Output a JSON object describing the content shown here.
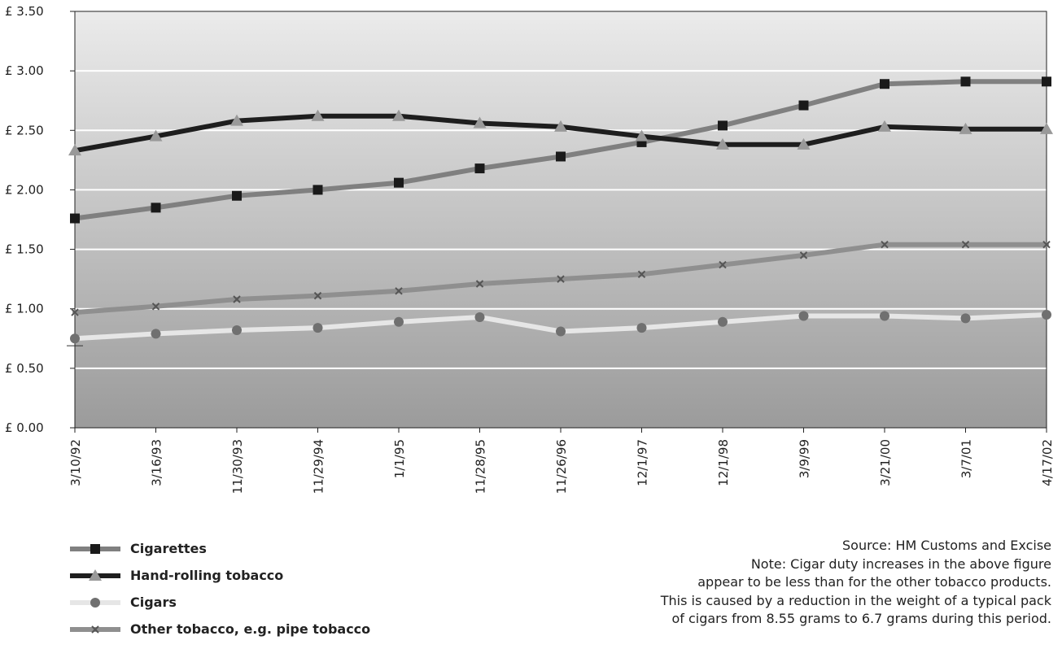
{
  "chart_data": {
    "type": "line",
    "x": [
      "3/10/92",
      "3/16/93",
      "11/30/93",
      "11/29/94",
      "1/1/95",
      "11/28/95",
      "11/26/96",
      "12/1/97",
      "12/1/98",
      "3/9/99",
      "3/21/00",
      "3/7/01",
      "4/17/02"
    ],
    "ylim": [
      0,
      3.5
    ],
    "y_ticks": [
      "£ 0.00",
      "£ 0.50",
      "£ 1.00",
      "£ 1.50",
      "£ 2.00",
      "£ 2.50",
      "£ 3.00",
      "£ 3.50"
    ],
    "grid": true,
    "legend_position": "bottom-left",
    "series": [
      {
        "name": "Cigarettes",
        "marker": "square",
        "line_color": "#808080",
        "marker_color": "#1a1a1a",
        "values": [
          1.76,
          1.85,
          1.95,
          2.0,
          2.06,
          2.18,
          2.28,
          2.4,
          2.54,
          2.71,
          2.89,
          2.91,
          2.91
        ]
      },
      {
        "name": "Hand-rolling tobacco",
        "marker": "triangle",
        "line_color": "#1e1e1e",
        "marker_color": "#999999",
        "values": [
          2.33,
          2.45,
          2.58,
          2.62,
          2.62,
          2.56,
          2.53,
          2.45,
          2.38,
          2.38,
          2.53,
          2.51,
          2.51
        ]
      },
      {
        "name": "Cigars",
        "marker": "circle",
        "line_color": "#e6e6e6",
        "marker_color": "#707070",
        "values": [
          0.75,
          0.79,
          0.82,
          0.84,
          0.89,
          0.93,
          0.81,
          0.84,
          0.89,
          0.94,
          0.94,
          0.92,
          0.95
        ]
      },
      {
        "name": "Other tobacco, e.g. pipe tobacco",
        "marker": "x",
        "line_color": "#8f8f8f",
        "marker_color": "#555555",
        "values": [
          0.97,
          1.02,
          1.08,
          1.11,
          1.15,
          1.21,
          1.25,
          1.29,
          1.37,
          1.45,
          1.54,
          1.54,
          1.54
        ]
      }
    ]
  },
  "notes": {
    "source": "Source: HM Customs and Excise",
    "note_line1": "Note: Cigar duty increases in the above figure",
    "note_line2": "appear to be less than for the other tobacco products.",
    "note_line3": "This is caused by a reduction in the weight of a typical pack",
    "note_line4": "of cigars from 8.55 grams to 6.7 grams during this period."
  }
}
